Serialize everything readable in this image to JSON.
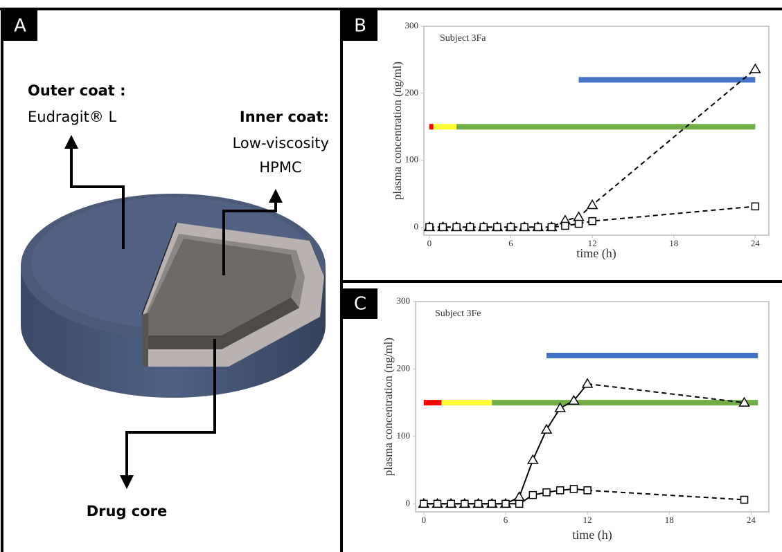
{
  "panels": [
    "A",
    "B",
    "C"
  ],
  "diagram": {
    "outer_coat": {
      "title": "Outer coat :",
      "material": "Eudragit® L"
    },
    "inner_coat": {
      "title": "Inner coat:",
      "material_lines": [
        "Low-viscosity",
        "HPMC"
      ]
    },
    "core": "Drug core"
  },
  "chart_data": [
    {
      "type": "line",
      "title": "Subject 3Fa",
      "x_label": "time (h)",
      "y_label": "plasma concentration (ng/ml)",
      "xlim": [
        -0.4,
        25
      ],
      "ylim": [
        -12,
        300
      ],
      "xticks": [
        0,
        6,
        12,
        18,
        24
      ],
      "yticks": [
        0,
        100,
        200,
        300
      ],
      "series": [
        {
          "marker": "triangle",
          "color": "#000000",
          "line_style": "dashed",
          "x": [
            0,
            1,
            2,
            3,
            4,
            5,
            6,
            7,
            8,
            9,
            10,
            11,
            12,
            24
          ],
          "values": [
            0,
            0,
            0,
            0,
            0,
            0,
            0,
            0,
            0,
            0,
            10,
            15,
            33,
            236
          ]
        },
        {
          "marker": "square",
          "color": "#000000",
          "line_style": "dashed",
          "x": [
            0,
            1,
            2,
            3,
            4,
            5,
            6,
            7,
            8,
            9,
            10,
            11,
            12,
            24
          ],
          "values": [
            0,
            0,
            0,
            0,
            0,
            0,
            0,
            0,
            0,
            0,
            2,
            5,
            9,
            31
          ]
        }
      ],
      "bands": [
        {
          "color": "#4472c4",
          "start": 11,
          "end": 24,
          "value": 220
        },
        {
          "color": "#ff0000",
          "start": 0,
          "end": 0.3,
          "value": 150
        },
        {
          "color": "#ffff33",
          "start": 0.3,
          "end": 2,
          "value": 150
        },
        {
          "color": "#70ad47",
          "start": 2,
          "end": 24,
          "value": 150
        }
      ]
    },
    {
      "type": "line",
      "title": "Subject 3Fe",
      "x_label": "time (h)",
      "y_label": "plasma concentration (ng/ml)",
      "xlim": [
        -0.6,
        25.3
      ],
      "ylim": [
        -12,
        300
      ],
      "xticks": [
        0,
        6,
        12,
        18,
        24
      ],
      "yticks": [
        0,
        100,
        200,
        300
      ],
      "series": [
        {
          "marker": "triangle",
          "color": "#000000",
          "line_style": "solid-dashed-tail",
          "x": [
            0,
            1,
            2,
            3,
            4,
            5,
            6,
            7,
            8,
            9,
            10,
            11,
            12,
            23.5
          ],
          "values": [
            0,
            0,
            0,
            0,
            0,
            0,
            0,
            10,
            65,
            110,
            142,
            153,
            178,
            150
          ]
        },
        {
          "marker": "square",
          "color": "#000000",
          "line_style": "solid-dashed-tail",
          "x": [
            0,
            1,
            2,
            3,
            4,
            5,
            6,
            7,
            8,
            9,
            10,
            11,
            12,
            23.5
          ],
          "values": [
            0,
            0,
            0,
            0,
            0,
            0,
            0,
            0,
            13,
            17,
            20,
            22,
            20,
            6
          ]
        }
      ],
      "bands": [
        {
          "color": "#4472c4",
          "start": 9,
          "end": 24.5,
          "value": 220
        },
        {
          "color": "#ff0000",
          "start": 0,
          "end": 1.3,
          "value": 150
        },
        {
          "color": "#ffff33",
          "start": 1.3,
          "end": 5,
          "value": 150
        },
        {
          "color": "#70ad47",
          "start": 5,
          "end": 24.5,
          "value": 150
        }
      ]
    }
  ]
}
